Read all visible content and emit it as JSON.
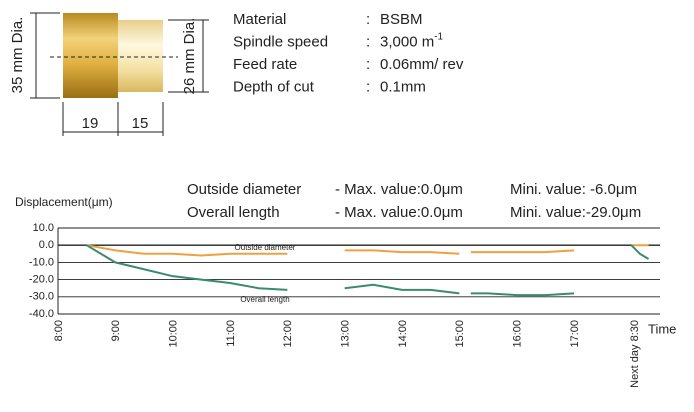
{
  "diagram": {
    "big_dia": "35 mm Dia.",
    "small_dia": "26 mm Dia.",
    "len1": "19",
    "len2": "15"
  },
  "specs": [
    [
      "Material",
      ":",
      "BSBM",
      ""
    ],
    [
      "Spindle speed",
      ":",
      "3,000 m",
      "-1"
    ],
    [
      "Feed rate",
      ":",
      "0.06mm/ rev",
      ""
    ],
    [
      "Depth of cut",
      ":",
      "0.1mm",
      ""
    ]
  ],
  "chart_data": {
    "type": "line",
    "ylabel": "Displacement(μm)",
    "xlabel": "Time",
    "x": [
      8.5,
      9,
      9.5,
      10,
      10.5,
      11,
      11.5,
      12,
      12.5,
      13,
      13.5,
      14,
      14.5,
      15,
      15.1,
      15.2,
      15.5,
      16,
      16.5,
      17,
      17.5,
      18.0,
      18.15,
      18.3
    ],
    "series": [
      {
        "name": "Outside diameter",
        "color": "#f0a040",
        "max_label": "- Max. value:0.0μm",
        "min_label": "Mini. value:  -6.0μm",
        "inline_label": "Outside diameter",
        "values": [
          0,
          -3,
          -5,
          -5,
          -6,
          -5,
          -5,
          -5,
          null,
          -3,
          -3,
          -4,
          -4,
          -5,
          null,
          -4,
          -4,
          -4,
          -4,
          -3,
          null,
          0,
          0,
          0
        ]
      },
      {
        "name": "Overall length",
        "color": "#3a8a70",
        "max_label": "- Max. value:0.0μm",
        "min_label": "Mini. value:-29.0μm",
        "inline_label": "Overall length",
        "values": [
          0,
          -10,
          -14,
          -18,
          -20,
          -22,
          -25,
          -26,
          null,
          -25,
          -23,
          -26,
          -26,
          -28,
          null,
          -28,
          -28,
          -29,
          -29,
          -28,
          null,
          0,
          -5,
          -8
        ]
      }
    ],
    "xlim": [
      8,
      18.5
    ],
    "xticks": [
      {
        "value": 8,
        "label": "8:00"
      },
      {
        "value": 9,
        "label": "9:00"
      },
      {
        "value": 10,
        "label": "10:00"
      },
      {
        "value": 11,
        "label": "11:00"
      },
      {
        "value": 12,
        "label": "12:00"
      },
      {
        "value": 13,
        "label": "13:00"
      },
      {
        "value": 14,
        "label": "14:00"
      },
      {
        "value": 15,
        "label": "15:00"
      },
      {
        "value": 16,
        "label": "16:00"
      },
      {
        "value": 17,
        "label": "17:00"
      },
      {
        "value": 18.05,
        "label": "Next day 8:30"
      }
    ],
    "ylim": [
      -40,
      10
    ],
    "yticks": [
      {
        "value": 10,
        "label": "10.0"
      },
      {
        "value": 0,
        "label": "0.0"
      },
      {
        "value": -10,
        "label": "-10.0"
      },
      {
        "value": -20,
        "label": "-20.0"
      },
      {
        "value": -30,
        "label": "-30.0"
      },
      {
        "value": -40,
        "label": "-40.0"
      }
    ],
    "grid": true
  }
}
